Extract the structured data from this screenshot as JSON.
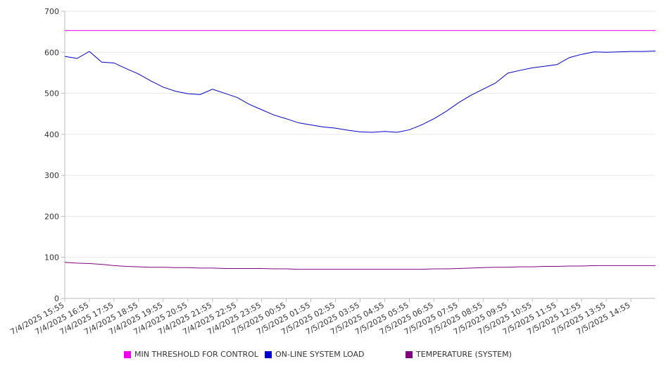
{
  "chart_data": {
    "type": "line",
    "title": "",
    "xlabel": "",
    "ylabel": "",
    "ylim": [
      0,
      700
    ],
    "y_ticks": [
      "0",
      "100",
      "200",
      "300",
      "400",
      "500",
      "600",
      "700"
    ],
    "x_tick_labels": [
      "7/4/2025 15:55",
      "7/4/2025 16:55",
      "7/4/2025 17:55",
      "7/4/2025 18:55",
      "7/4/2025 19:55",
      "7/4/2025 20:55",
      "7/4/2025 21:55",
      "7/4/2025 22:55",
      "7/4/2025 23:55",
      "7/5/2025 00:55",
      "7/5/2025 01:55",
      "7/5/2025 02:55",
      "7/5/2025 03:55",
      "7/5/2025 04:55",
      "7/5/2025 05:55",
      "7/5/2025 06:55",
      "7/5/2025 07:55",
      "7/5/2025 08:55",
      "7/5/2025 09:55",
      "7/5/2025 10:55",
      "7/5/2025 11:55",
      "7/5/2025 12:55",
      "7/5/2025 13:55",
      "7/5/2025 14:55"
    ],
    "x": [
      "7/4/2025 15:55",
      "7/4/2025 16:25",
      "7/4/2025 16:55",
      "7/4/2025 17:25",
      "7/4/2025 17:55",
      "7/4/2025 18:25",
      "7/4/2025 18:55",
      "7/4/2025 19:25",
      "7/4/2025 19:55",
      "7/4/2025 20:25",
      "7/4/2025 20:55",
      "7/4/2025 21:25",
      "7/4/2025 21:55",
      "7/4/2025 22:25",
      "7/4/2025 22:55",
      "7/4/2025 23:25",
      "7/4/2025 23:55",
      "7/5/2025 00:25",
      "7/5/2025 00:55",
      "7/5/2025 01:25",
      "7/5/2025 01:55",
      "7/5/2025 02:25",
      "7/5/2025 02:55",
      "7/5/2025 03:25",
      "7/5/2025 03:55",
      "7/5/2025 04:25",
      "7/5/2025 04:55",
      "7/5/2025 05:25",
      "7/5/2025 05:55",
      "7/5/2025 06:25",
      "7/5/2025 06:55",
      "7/5/2025 07:25",
      "7/5/2025 07:55",
      "7/5/2025 08:25",
      "7/5/2025 08:55",
      "7/5/2025 09:25",
      "7/5/2025 09:55",
      "7/5/2025 10:25",
      "7/5/2025 10:55",
      "7/5/2025 11:25",
      "7/5/2025 11:55",
      "7/5/2025 12:25",
      "7/5/2025 12:55",
      "7/5/2025 13:25",
      "7/5/2025 13:55",
      "7/5/2025 14:25",
      "7/5/2025 14:55",
      "7/5/2025 15:25",
      "7/5/2025 15:55"
    ],
    "series": [
      {
        "name": "MIN THRESHOLD FOR CONTROL",
        "color": "#ee00ee",
        "values": [
          653,
          653,
          653,
          653,
          653,
          653,
          653,
          653,
          653,
          653,
          653,
          653,
          653,
          653,
          653,
          653,
          653,
          653,
          653,
          653,
          653,
          653,
          653,
          653,
          653,
          653,
          653,
          653,
          653,
          653,
          653,
          653,
          653,
          653,
          653,
          653,
          653,
          653,
          653,
          653,
          653,
          653,
          653,
          653,
          653,
          653,
          653,
          653,
          653
        ]
      },
      {
        "name": "ON-LINE SYSTEM LOAD",
        "color": "#0000cc",
        "values": [
          590,
          585,
          602,
          576,
          574,
          560,
          547,
          530,
          515,
          505,
          499,
          497,
          510,
          500,
          490,
          473,
          460,
          447,
          438,
          428,
          423,
          418,
          415,
          410,
          406,
          405,
          407,
          405,
          411,
          423,
          438,
          456,
          477,
          495,
          510,
          525,
          549,
          556,
          562,
          566,
          570,
          587,
          595,
          601,
          600,
          601,
          602,
          602,
          603
        ]
      },
      {
        "name": "TEMPERATURE (SYSTEM)",
        "color": "#800080",
        "values": [
          88,
          86,
          85,
          83,
          80,
          78,
          77,
          76,
          76,
          75,
          75,
          74,
          74,
          73,
          73,
          73,
          73,
          72,
          72,
          71,
          71,
          71,
          71,
          71,
          71,
          71,
          71,
          71,
          71,
          71,
          72,
          72,
          73,
          74,
          75,
          76,
          76,
          77,
          77,
          78,
          78,
          79,
          79,
          80,
          80,
          80,
          80,
          80,
          80
        ]
      }
    ],
    "legend_position": "bottom",
    "grid": true
  }
}
